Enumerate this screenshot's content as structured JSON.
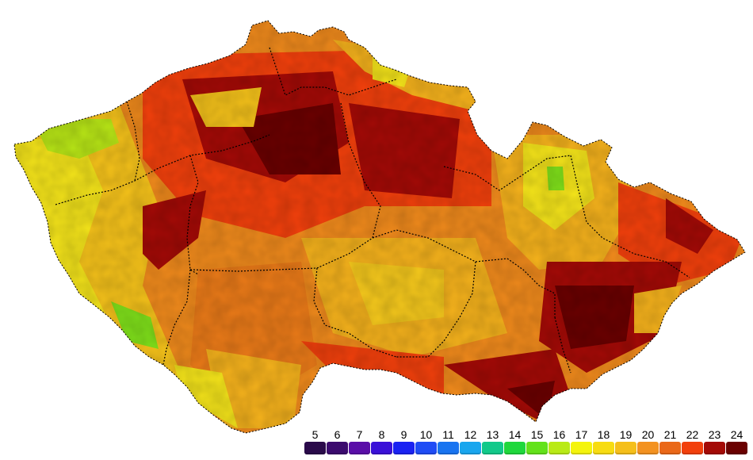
{
  "legend": {
    "items": [
      {
        "label": "5",
        "color": "#2a0a4a"
      },
      {
        "label": "6",
        "color": "#3b0a6e"
      },
      {
        "label": "7",
        "color": "#5a0ea8"
      },
      {
        "label": "8",
        "color": "#3a10d8"
      },
      {
        "label": "9",
        "color": "#1a22f2"
      },
      {
        "label": "10",
        "color": "#1f4cf5"
      },
      {
        "label": "11",
        "color": "#1874f0"
      },
      {
        "label": "12",
        "color": "#19a6ee"
      },
      {
        "label": "13",
        "color": "#12c98a"
      },
      {
        "label": "14",
        "color": "#1fd83c"
      },
      {
        "label": "15",
        "color": "#63e21a"
      },
      {
        "label": "16",
        "color": "#b9ea16"
      },
      {
        "label": "17",
        "color": "#f4f40c"
      },
      {
        "label": "18",
        "color": "#f7dc12"
      },
      {
        "label": "19",
        "color": "#f5bf1a"
      },
      {
        "label": "20",
        "color": "#f39220"
      },
      {
        "label": "21",
        "color": "#ea6818"
      },
      {
        "label": "22",
        "color": "#f2400c"
      },
      {
        "label": "23",
        "color": "#a40a06"
      },
      {
        "label": "24",
        "color": "#6a0000"
      }
    ]
  }
}
